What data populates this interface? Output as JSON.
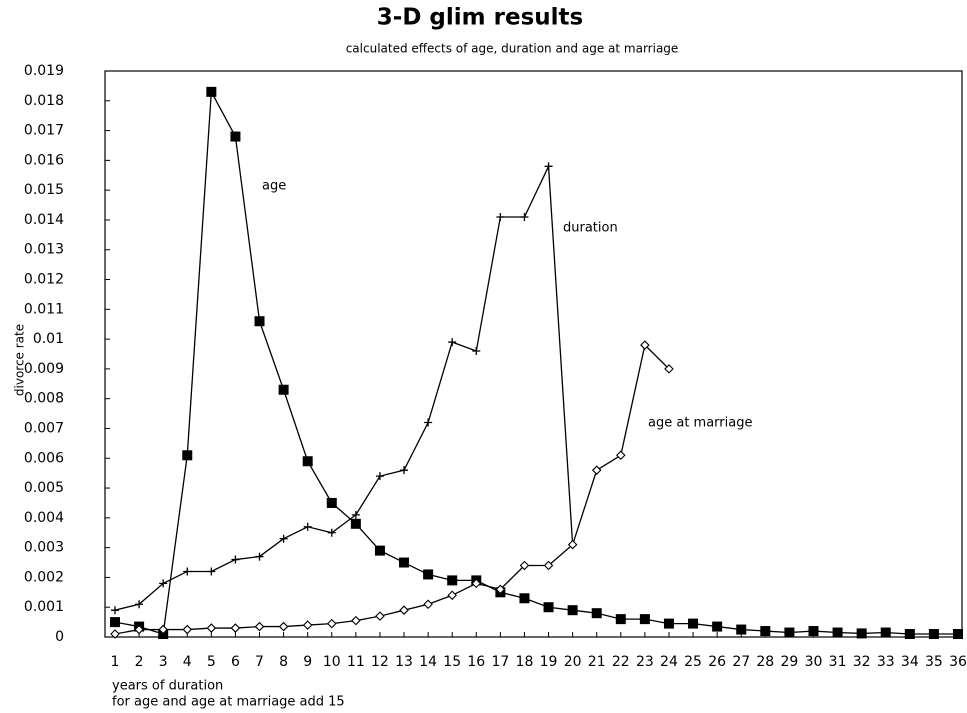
{
  "chart_data": {
    "type": "line",
    "title": "3-D glim results",
    "subtitle": "calculated effects of age, duration and age at marriage",
    "y_label": "divorce rate",
    "x_label": [
      "years of duration",
      "for age and age at marriage add 15"
    ],
    "categories": [
      1,
      2,
      3,
      4,
      5,
      6,
      7,
      8,
      9,
      10,
      11,
      12,
      13,
      14,
      15,
      16,
      17,
      18,
      19,
      20,
      21,
      22,
      23,
      24,
      25,
      26,
      27,
      28,
      29,
      30,
      31,
      32,
      33,
      34,
      35,
      36
    ],
    "ylim": [
      0,
      0.019
    ],
    "yticks": [
      0,
      0.001,
      0.002,
      0.003,
      0.004,
      0.005,
      0.006,
      0.007,
      0.008,
      0.009,
      0.01,
      0.011,
      0.012,
      0.013,
      0.014,
      0.015,
      0.016,
      0.017,
      0.018,
      0.019
    ],
    "series": [
      {
        "name": "age",
        "color": "#000000",
        "marker": "square",
        "values": [
          0.0005,
          0.00035,
          0.0001,
          0.0061,
          0.0183,
          0.0168,
          0.0106,
          0.0083,
          0.0059,
          0.0045,
          0.0038,
          0.0029,
          0.0025,
          0.0021,
          0.0019,
          0.0019,
          0.0015,
          0.0013,
          0.001,
          0.0009,
          0.0008,
          0.0006,
          0.0006,
          0.00045,
          0.00045,
          0.00035,
          0.00025,
          0.0002,
          0.00015,
          0.0002,
          0.00015,
          0.00012,
          0.00015,
          0.0001,
          0.0001,
          0.0001
        ]
      },
      {
        "name": "duration",
        "color": "#000000",
        "marker": "plus",
        "values": [
          0.0009,
          0.0011,
          0.0018,
          0.0022,
          0.0022,
          0.0026,
          0.0027,
          0.0033,
          0.0037,
          0.0035,
          0.0041,
          0.0054,
          0.0056,
          0.0072,
          0.0099,
          0.0096,
          0.0141,
          0.0141,
          0.0158,
          0.0031,
          null,
          null,
          null,
          null,
          null,
          null,
          null,
          null,
          null,
          null,
          null,
          null,
          null,
          null,
          null,
          null
        ]
      },
      {
        "name": "age at marriage",
        "color": "#000000",
        "marker": "diamond",
        "values": [
          0.0001,
          0.00025,
          0.00025,
          0.00025,
          0.0003,
          0.0003,
          0.00035,
          0.00035,
          0.0004,
          0.00045,
          0.00055,
          0.0007,
          0.0009,
          0.0011,
          0.0014,
          0.0018,
          0.0016,
          0.0024,
          0.0024,
          0.0031,
          0.0056,
          0.0061,
          0.0098,
          0.009,
          null,
          null,
          null,
          null,
          null,
          null,
          null,
          null,
          null,
          null,
          null,
          null
        ]
      }
    ]
  }
}
